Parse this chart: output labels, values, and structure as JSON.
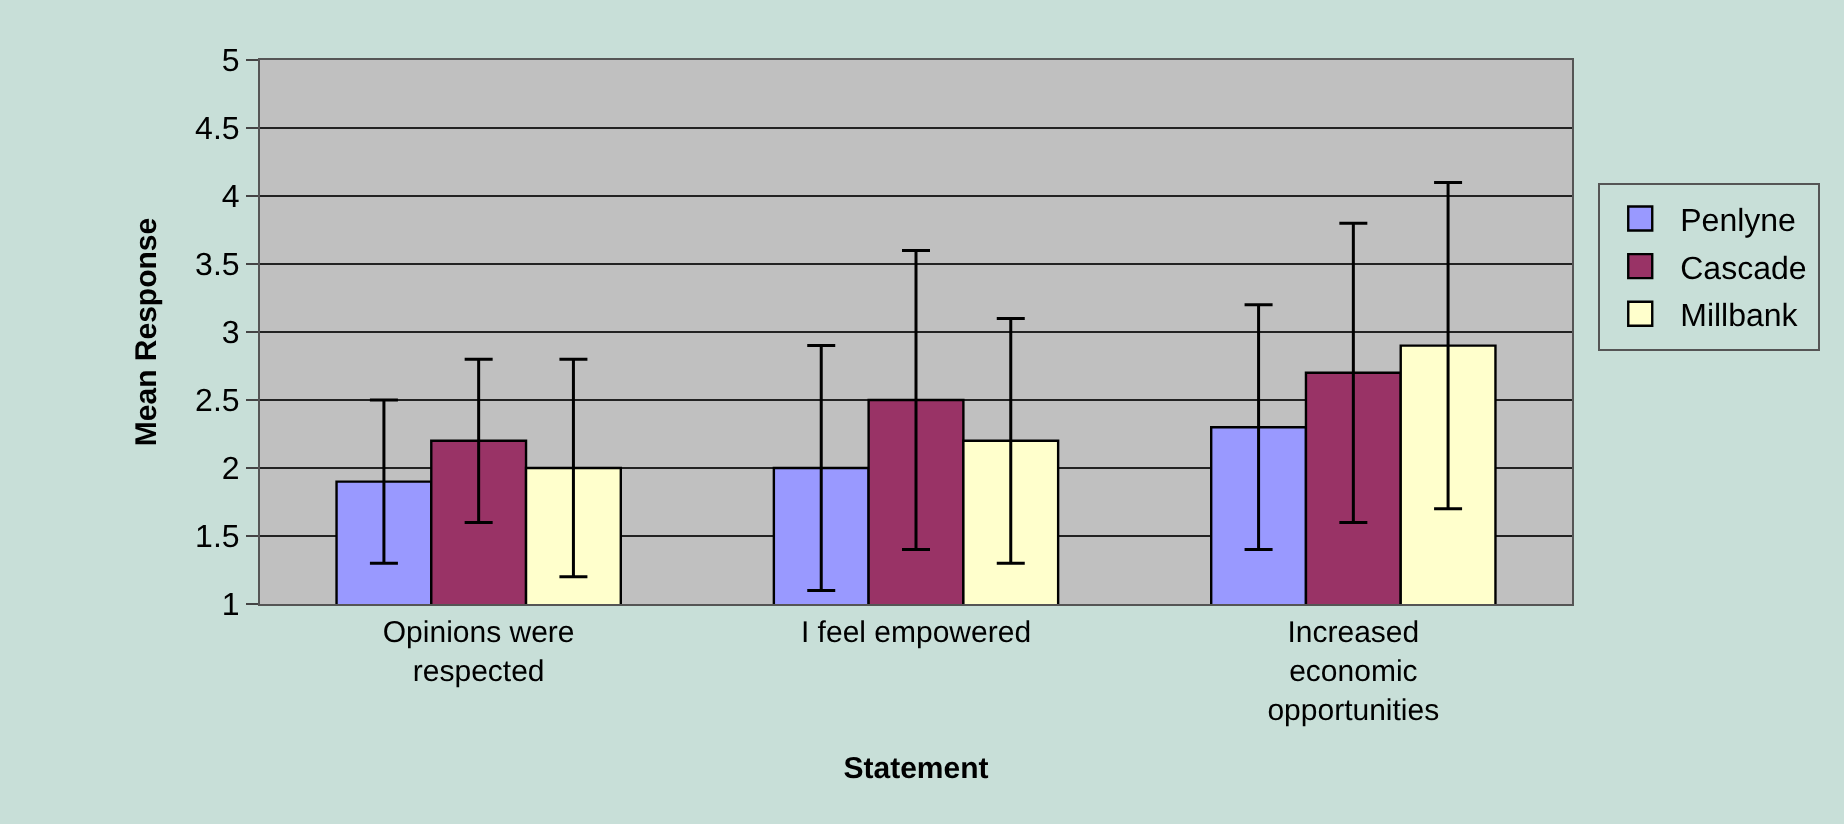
{
  "chart_data": {
    "type": "bar",
    "xlabel": "Statement",
    "ylabel": "Mean Response",
    "categories": [
      "Opinions were respected",
      "I feel empowered",
      "Increased economic opportunities"
    ],
    "series": [
      {
        "name": "Penlyne",
        "color": "#9999ff",
        "values": [
          1.9,
          2.0,
          2.3
        ],
        "errors": [
          [
            1.3,
            2.5
          ],
          [
            1.1,
            2.9
          ],
          [
            1.4,
            3.2
          ]
        ]
      },
      {
        "name": "Cascade",
        "color": "#993366",
        "values": [
          2.2,
          2.5,
          2.7
        ],
        "errors": [
          [
            1.6,
            2.8
          ],
          [
            1.4,
            3.6
          ],
          [
            1.6,
            3.8
          ]
        ]
      },
      {
        "name": "Millbank",
        "color": "#ffffcc",
        "values": [
          2.0,
          2.2,
          2.9
        ],
        "errors": [
          [
            1.2,
            2.8
          ],
          [
            1.3,
            3.1
          ],
          [
            1.7,
            4.1
          ]
        ]
      }
    ],
    "ylim": [
      1,
      5
    ],
    "yticks": [
      1,
      1.5,
      2,
      2.5,
      3,
      3.5,
      4,
      4.5,
      5
    ],
    "grid": "y",
    "legend": "right"
  }
}
